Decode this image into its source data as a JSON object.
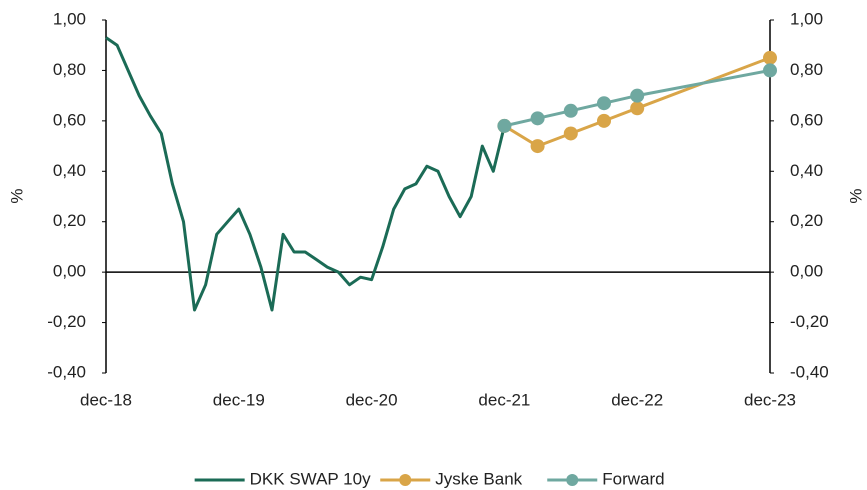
{
  "chart_data": {
    "type": "line",
    "ylabel": "%",
    "y2label": "%",
    "ylim": [
      -0.4,
      1.0
    ],
    "yticks": [
      {
        "value": -0.4,
        "label": "-0,40"
      },
      {
        "value": -0.2,
        "label": "-0,20"
      },
      {
        "value": 0,
        "label": "0,00"
      },
      {
        "value": 0.2,
        "label": "0,20"
      },
      {
        "value": 0.4,
        "label": "0,40"
      },
      {
        "value": 0.6,
        "label": "0,60"
      },
      {
        "value": 0.8,
        "label": "0,80"
      },
      {
        "value": 1.0,
        "label": "1,00"
      }
    ],
    "y2lim": [
      -0.4,
      1.0
    ],
    "y2ticks": [
      {
        "value": -0.4,
        "label": "-0,40"
      },
      {
        "value": -0.2,
        "label": "-0,20"
      },
      {
        "value": 0,
        "label": "0,00"
      },
      {
        "value": 0.2,
        "label": "0,20"
      },
      {
        "value": 0.4,
        "label": "0,40"
      },
      {
        "value": 0.6,
        "label": "0,60"
      },
      {
        "value": 0.8,
        "label": "0,80"
      },
      {
        "value": 1.0,
        "label": "1,00"
      }
    ],
    "xlim": [
      "2018-12",
      "2023-12"
    ],
    "xticks": [
      {
        "value": "2018-12",
        "label": "dec-18"
      },
      {
        "value": "2019-12",
        "label": "dec-19"
      },
      {
        "value": "2020-12",
        "label": "dec-20"
      },
      {
        "value": "2021-12",
        "label": "dec-21"
      },
      {
        "value": "2022-12",
        "label": "dec-22"
      },
      {
        "value": "2023-12",
        "label": "dec-23"
      }
    ],
    "legend": "bottom",
    "series": [
      {
        "name": "DKK SWAP 10y",
        "color": "#1b6b56",
        "markers": false,
        "x": [
          "2018-12",
          "2019-01",
          "2019-02",
          "2019-03",
          "2019-04",
          "2019-05",
          "2019-06",
          "2019-07",
          "2019-08",
          "2019-09",
          "2019-10",
          "2019-11",
          "2019-12",
          "2020-01",
          "2020-02",
          "2020-03",
          "2020-04",
          "2020-05",
          "2020-06",
          "2020-07",
          "2020-08",
          "2020-09",
          "2020-10",
          "2020-11",
          "2020-12",
          "2021-01",
          "2021-02",
          "2021-03",
          "2021-04",
          "2021-05",
          "2021-06",
          "2021-07",
          "2021-08",
          "2021-09",
          "2021-10",
          "2021-11",
          "2021-12"
        ],
        "values": [
          0.93,
          0.9,
          0.8,
          0.7,
          0.62,
          0.55,
          0.35,
          0.2,
          -0.15,
          -0.05,
          0.15,
          0.2,
          0.25,
          0.15,
          0.02,
          -0.15,
          0.15,
          0.08,
          0.08,
          0.05,
          0.02,
          0.0,
          -0.05,
          -0.02,
          -0.03,
          0.1,
          0.25,
          0.33,
          0.35,
          0.42,
          0.4,
          0.3,
          0.22,
          0.3,
          0.5,
          0.4,
          0.58
        ]
      },
      {
        "name": "Jyske Bank",
        "color": "#d9a548",
        "markers": true,
        "x": [
          "2021-12",
          "2022-03",
          "2022-06",
          "2022-09",
          "2022-12",
          "2023-12"
        ],
        "values": [
          0.58,
          0.5,
          0.55,
          0.6,
          0.65,
          0.85
        ]
      },
      {
        "name": "Forward",
        "color": "#6fa8a0",
        "markers": true,
        "x": [
          "2021-12",
          "2022-03",
          "2022-06",
          "2022-09",
          "2022-12",
          "2023-12"
        ],
        "values": [
          0.58,
          0.61,
          0.64,
          0.67,
          0.7,
          0.8
        ]
      }
    ]
  }
}
